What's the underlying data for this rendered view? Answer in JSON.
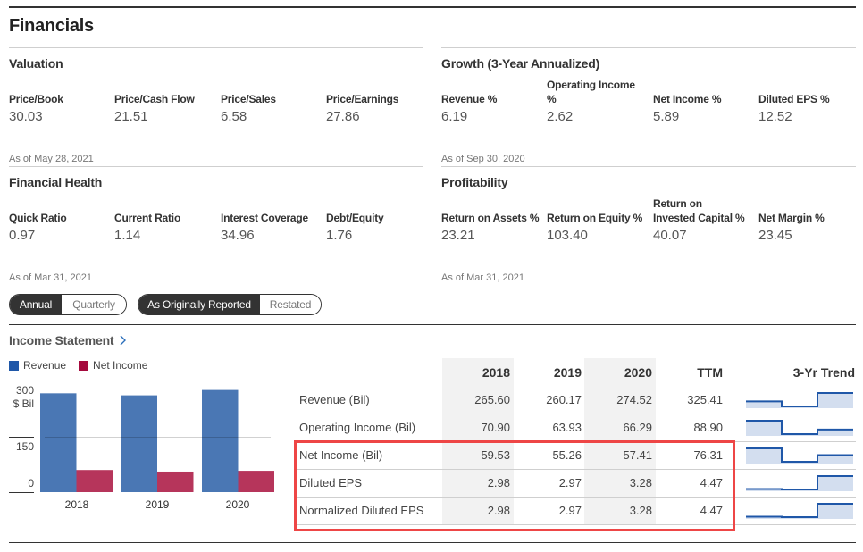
{
  "page": {
    "title": "Financials"
  },
  "valuation": {
    "title": "Valuation",
    "metrics": [
      {
        "label": "Price/Book",
        "value": "30.03"
      },
      {
        "label": "Price/Cash Flow",
        "value": "21.51"
      },
      {
        "label": "Price/Sales",
        "value": "6.58"
      },
      {
        "label": "Price/Earnings",
        "value": "27.86"
      }
    ],
    "as_of": "As of May 28, 2021"
  },
  "growth": {
    "title": "Growth (3-Year Annualized)",
    "metrics": [
      {
        "label": "Revenue %",
        "value": "6.19"
      },
      {
        "label": "Operating Income\n%",
        "value": "2.62"
      },
      {
        "label": "Net Income %",
        "value": "5.89"
      },
      {
        "label": "Diluted EPS %",
        "value": "12.52"
      }
    ],
    "as_of": "As of Sep 30, 2020"
  },
  "financial_health": {
    "title": "Financial Health",
    "metrics": [
      {
        "label": "Quick Ratio",
        "value": "0.97"
      },
      {
        "label": "Current Ratio",
        "value": "1.14"
      },
      {
        "label": "Interest Coverage",
        "value": "34.96"
      },
      {
        "label": "Debt/Equity",
        "value": "1.76"
      }
    ],
    "as_of": "As of Mar 31, 2021"
  },
  "profitability": {
    "title": "Profitability",
    "metrics": [
      {
        "label": "Return on Assets %",
        "value": "23.21"
      },
      {
        "label": "Return on Equity %",
        "value": "103.40"
      },
      {
        "label": "Return on\nInvested Capital %",
        "value": "40.07"
      },
      {
        "label": "Net Margin %",
        "value": "23.45"
      }
    ],
    "as_of": "As of Mar 31, 2021"
  },
  "toggles": {
    "period": [
      {
        "label": "Annual",
        "active": true
      },
      {
        "label": "Quarterly",
        "active": false
      }
    ],
    "reporting": [
      {
        "label": "As Originally Reported",
        "active": true
      },
      {
        "label": "Restated",
        "active": false
      }
    ]
  },
  "income_statement": {
    "title": "Income Statement",
    "legend": [
      {
        "label": "Revenue",
        "color": "#1f57a8"
      },
      {
        "label": "Net Income",
        "color": "#a50a3d"
      }
    ],
    "headers": [
      "2018",
      "2019",
      "2020",
      "TTM",
      "3-Yr Trend"
    ],
    "rows": [
      {
        "label": "Revenue (Bil)",
        "values": [
          "265.60",
          "260.17",
          "274.52",
          "325.41"
        ]
      },
      {
        "label": "Operating Income (Bil)",
        "values": [
          "70.90",
          "63.93",
          "66.29",
          "88.90"
        ]
      },
      {
        "label": "Net Income (Bil)",
        "values": [
          "59.53",
          "55.26",
          "57.41",
          "76.31"
        ]
      },
      {
        "label": "Diluted EPS",
        "values": [
          "2.98",
          "2.97",
          "3.28",
          "4.47"
        ]
      },
      {
        "label": "Normalized Diluted EPS",
        "values": [
          "2.98",
          "2.97",
          "3.28",
          "4.47"
        ]
      }
    ],
    "highlighted_row_indices": [
      2,
      3,
      4
    ]
  },
  "colors": {
    "revenue_bar": "#4a77b4",
    "net_income_bar": "#b6355b",
    "trend_line": "#1f57a8",
    "trend_fill": "#d3deef",
    "highlight": "#ee4646",
    "dark": "#333333"
  },
  "chart_data": {
    "type": "bar",
    "title": "",
    "categories": [
      "2018",
      "2019",
      "2020"
    ],
    "series": [
      {
        "name": "Revenue",
        "values": [
          265.6,
          260.17,
          274.52
        ]
      },
      {
        "name": "Net Income",
        "values": [
          59.53,
          55.26,
          57.41
        ]
      }
    ],
    "xlabel": "",
    "ylabel": "$ Bil",
    "ylim": [
      0,
      300
    ],
    "yticks": [
      0,
      150,
      300
    ],
    "y_tick_labels": [
      "0",
      "150",
      "300"
    ],
    "grid": true,
    "legend": "top-left"
  }
}
